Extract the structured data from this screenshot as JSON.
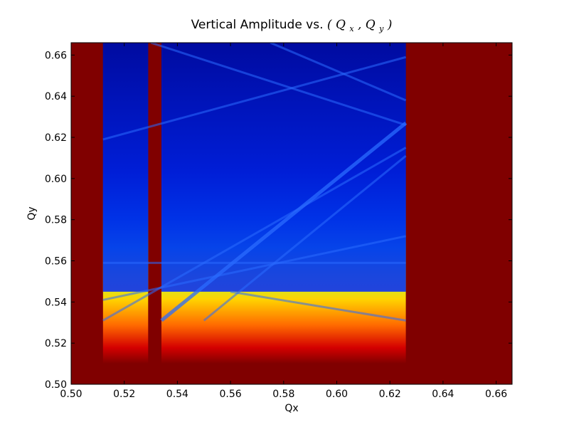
{
  "chart_data": {
    "type": "heatmap",
    "title_prefix": "Vertical Amplitude vs. ",
    "title_math": {
      "open": "(",
      "q1": "Q",
      "sub1": "x",
      "comma": ",",
      "q2": "Q",
      "sub2": "y",
      "close": ")"
    },
    "xlabel": "Qx",
    "ylabel": "Qy",
    "xlim": [
      0.5,
      0.666
    ],
    "ylim": [
      0.5,
      0.666
    ],
    "colormap": "jet",
    "background_color": "#800000",
    "x_ticks": [
      "0.50",
      "0.52",
      "0.54",
      "0.56",
      "0.58",
      "0.60",
      "0.62",
      "0.64",
      "0.66"
    ],
    "y_ticks": [
      "0.50",
      "0.52",
      "0.54",
      "0.56",
      "0.58",
      "0.60",
      "0.62",
      "0.64",
      "0.66"
    ],
    "regions": {
      "saturated_left": [
        [
          0.5,
          0.512
        ],
        [
          0.529,
          0.534
        ]
      ],
      "saturated_right_from": 0.626,
      "bottom_band_below": 0.51
    },
    "resonance_lines": [
      {
        "x1": 0.534,
        "y1": 0.531,
        "x2": 0.626,
        "y2": 0.627
      },
      {
        "x1": 0.55,
        "y1": 0.531,
        "x2": 0.626,
        "y2": 0.611
      },
      {
        "x1": 0.575,
        "y1": 0.666,
        "x2": 0.626,
        "y2": 0.638
      },
      {
        "x1": 0.512,
        "y1": 0.541,
        "x2": 0.626,
        "y2": 0.572
      },
      {
        "x1": 0.512,
        "y1": 0.559,
        "x2": 0.626,
        "y2": 0.559
      },
      {
        "x1": 0.512,
        "y1": 0.619,
        "x2": 0.626,
        "y2": 0.659
      },
      {
        "x1": 0.53,
        "y1": 0.666,
        "x2": 0.626,
        "y2": 0.626
      },
      {
        "x1": 0.512,
        "y1": 0.531,
        "x2": 0.626,
        "y2": 0.615
      },
      {
        "x1": 0.56,
        "y1": 0.545,
        "x2": 0.626,
        "y2": 0.531
      }
    ]
  }
}
